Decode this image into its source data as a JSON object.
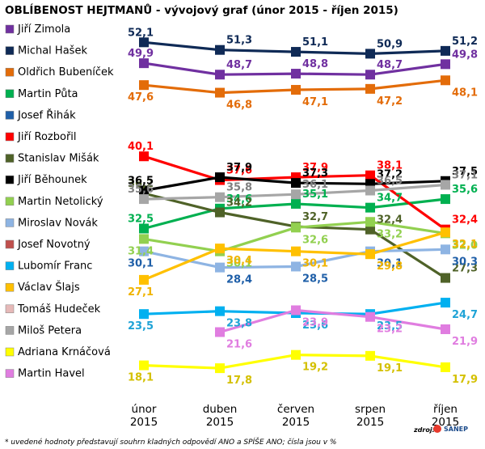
{
  "chart_data": {
    "type": "line",
    "title": "OBLÍBENOST HEJTMANŮ - vývojový graf (únor 2015 - říjen 2015)",
    "categories": [
      [
        "únor",
        "2015"
      ],
      [
        "duben",
        "2015"
      ],
      [
        "červen",
        "2015"
      ],
      [
        "srpen",
        "2015"
      ],
      [
        "říjen",
        "2015"
      ]
    ],
    "ylim": [
      15,
      54
    ],
    "series": [
      {
        "name": "Jiří Zimola",
        "color": "#7030a0",
        "values": [
          49.9,
          48.7,
          48.8,
          48.7,
          49.8
        ]
      },
      {
        "name": "Michal Hašek",
        "color": "#0f2a56",
        "values": [
          52.1,
          51.3,
          51.1,
          50.9,
          51.2
        ]
      },
      {
        "name": "Oldřich Bubeníček",
        "color": "#e36c09",
        "values": [
          47.6,
          46.8,
          47.1,
          47.2,
          48.1
        ]
      },
      {
        "name": "Martin Půta",
        "color": "#00b050",
        "values": [
          32.5,
          34.6,
          35.1,
          34.7,
          35.6
        ]
      },
      {
        "name": "Josef Řihák",
        "color": "#1f5fa8",
        "values": [
          null,
          null,
          null,
          null,
          null
        ]
      },
      {
        "name": "Jiří Rozbořil",
        "color": "#ff0000",
        "values": [
          40.1,
          37.6,
          37.9,
          38.1,
          32.4
        ]
      },
      {
        "name": "Stanislav Mišák",
        "color": "#4f6228",
        "values": [
          36.2,
          34.2,
          32.7,
          32.4,
          27.3
        ]
      },
      {
        "name": "Jiří Běhounek",
        "color": "#000000",
        "values": [
          36.5,
          37.9,
          37.3,
          37.2,
          37.5
        ]
      },
      {
        "name": "Martin Netolický",
        "color": "#92d050",
        "values": [
          31.4,
          30.1,
          32.6,
          33.2,
          32.0
        ]
      },
      {
        "name": "Miroslav Novák",
        "color": "#8eb4e3",
        "values": [
          30.1,
          28.4,
          28.5,
          30.1,
          30.3
        ]
      },
      {
        "name": "Josef Novotný",
        "color": "#c0504d",
        "values": [
          null,
          null,
          null,
          null,
          null
        ]
      },
      {
        "name": "Lubomír Franc",
        "color": "#00b0f0",
        "values": [
          23.5,
          23.8,
          23.6,
          23.5,
          24.7
        ]
      },
      {
        "name": "Václav Šlajs",
        "color": "#ffc000",
        "values": [
          27.1,
          30.4,
          30.1,
          29.8,
          32.1
        ]
      },
      {
        "name": "Tomáš Hudeček",
        "color": "#e6b9b8",
        "values": [
          null,
          null,
          null,
          null,
          null
        ]
      },
      {
        "name": "Miloš Petera",
        "color": "#a6a6a6",
        "values": [
          35.6,
          35.8,
          36.1,
          36.5,
          37.1
        ]
      },
      {
        "name": "Adriana Krnáčová",
        "color": "#ffff00",
        "values": [
          18.1,
          17.8,
          19.2,
          19.1,
          17.9
        ]
      },
      {
        "name": "Martin Havel",
        "color": "#e07de0",
        "values": [
          null,
          21.6,
          23.9,
          23.2,
          21.9
        ]
      }
    ],
    "value_label_colors": {
      "Jiří Zimola": "#7030a0",
      "Michal Hašek": "#0f2a56",
      "Oldřich Bubeníček": "#e36c09",
      "Martin Půta": "#00b050",
      "Jiří Rozbořil": "#ff0000",
      "Stanislav Mišák": "#4f6228",
      "Jiří Běhounek": "#000000",
      "Martin Netolický": "#92d050",
      "Miroslav Novák": "#1f5fa8",
      "Lubomír Franc": "#1fa3d6",
      "Václav Šlajs": "#f0b400",
      "Miloš Petera": "#7f7f7f",
      "Adriana Krnáčová": "#d4c000",
      "Martin Havel": "#e07de0"
    },
    "legend_position": "left",
    "grid": false
  },
  "footnote": "* uvedené hodnoty představují souhrn kladných odpovědí ANO a SPÍŠE ANO; čísla jsou v %",
  "source_label": "zdroj:",
  "source_logo": "SANEP"
}
